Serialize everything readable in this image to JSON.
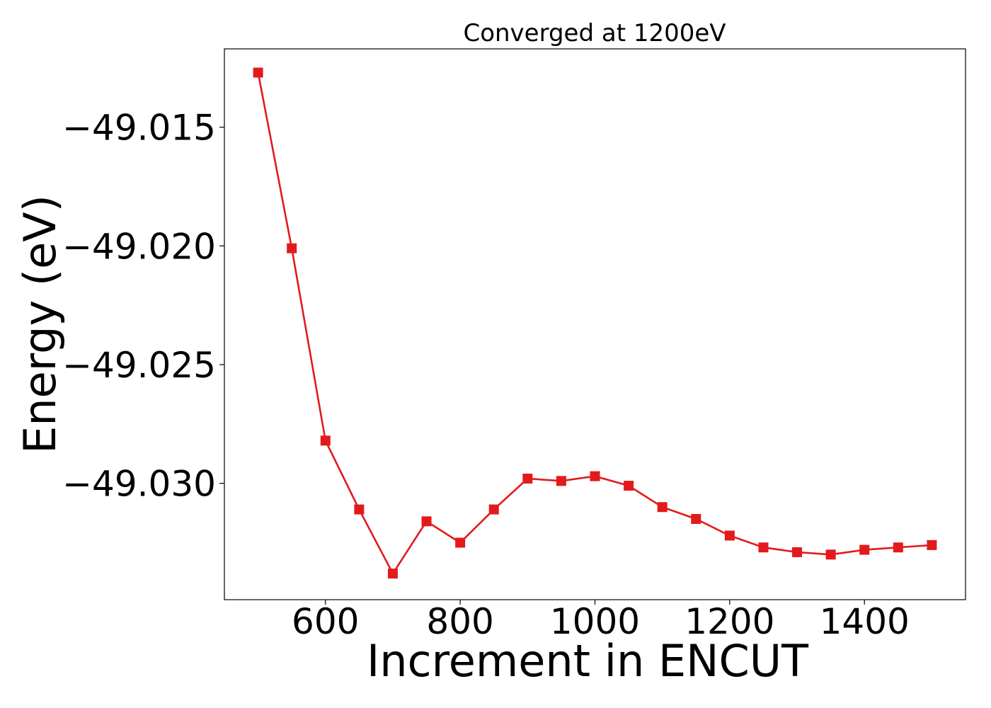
{
  "chart_data": {
    "type": "line",
    "title": "Converged at 1200eV",
    "xlabel": "Increment in ENCUT",
    "ylabel": "Energy (eV)",
    "xlim": [
      450,
      1550
    ],
    "ylim": [
      -49.0349,
      -49.0117
    ],
    "xticks": [
      {
        "value": 600,
        "label": "600"
      },
      {
        "value": 800,
        "label": "800"
      },
      {
        "value": 1000,
        "label": "1000"
      },
      {
        "value": 1200,
        "label": "1200"
      },
      {
        "value": 1400,
        "label": "1400"
      }
    ],
    "yticks": [
      {
        "value": -49.015,
        "label": "−49.015"
      },
      {
        "value": -49.02,
        "label": "−49.020"
      },
      {
        "value": -49.025,
        "label": "−49.025"
      },
      {
        "value": -49.03,
        "label": "−49.030"
      }
    ],
    "grid": false,
    "legend": "none",
    "series": [
      {
        "color": "#e31a1c",
        "marker": "square",
        "x": [
          500,
          550,
          600,
          650,
          700,
          750,
          800,
          850,
          900,
          950,
          1000,
          1050,
          1100,
          1150,
          1200,
          1250,
          1300,
          1350,
          1400,
          1450,
          1500
        ],
        "y": [
          -49.0127,
          -49.0201,
          -49.0282,
          -49.0311,
          -49.0338,
          -49.0316,
          -49.0325,
          -49.0311,
          -49.0298,
          -49.0299,
          -49.0297,
          -49.0301,
          -49.031,
          -49.0315,
          -49.0322,
          -49.0327,
          -49.0329,
          -49.033,
          -49.0328,
          -49.0327,
          -49.0326
        ]
      }
    ]
  }
}
